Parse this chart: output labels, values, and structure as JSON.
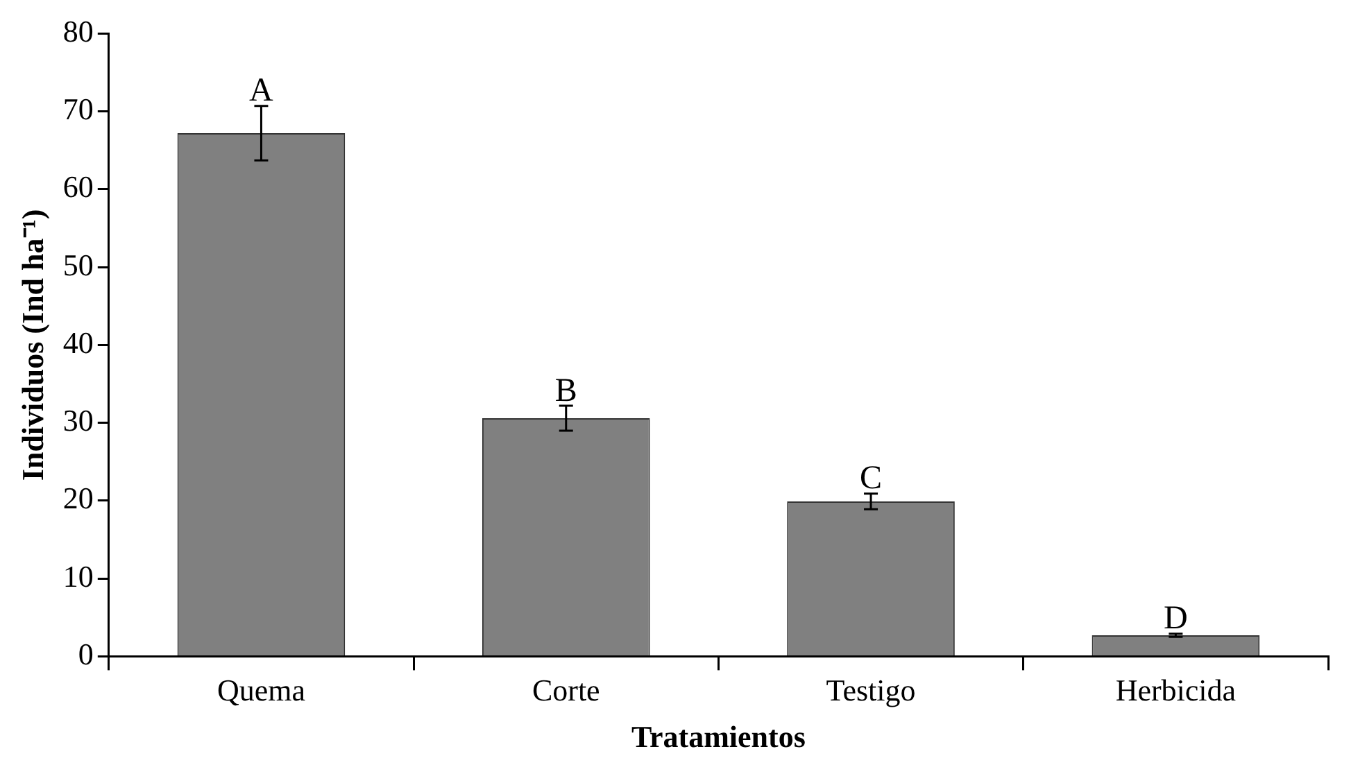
{
  "chart_data": {
    "type": "bar",
    "xlabel": "Tratamientos",
    "ylabel": "Individuos (Ind ha⁻¹)",
    "categories": [
      "Quema",
      "Corte",
      "Testigo",
      "Herbicida"
    ],
    "values": [
      67.2,
      30.6,
      19.9,
      2.7
    ],
    "errors": [
      3.5,
      1.6,
      1.0,
      0.2
    ],
    "color": "#808080",
    "ylim": [
      0,
      80
    ],
    "yticks": [
      0,
      10,
      20,
      30,
      40,
      50,
      60,
      70,
      80
    ],
    "grid": false,
    "legend": false,
    "annotations": [
      "A",
      "B",
      "C",
      "D"
    ]
  }
}
